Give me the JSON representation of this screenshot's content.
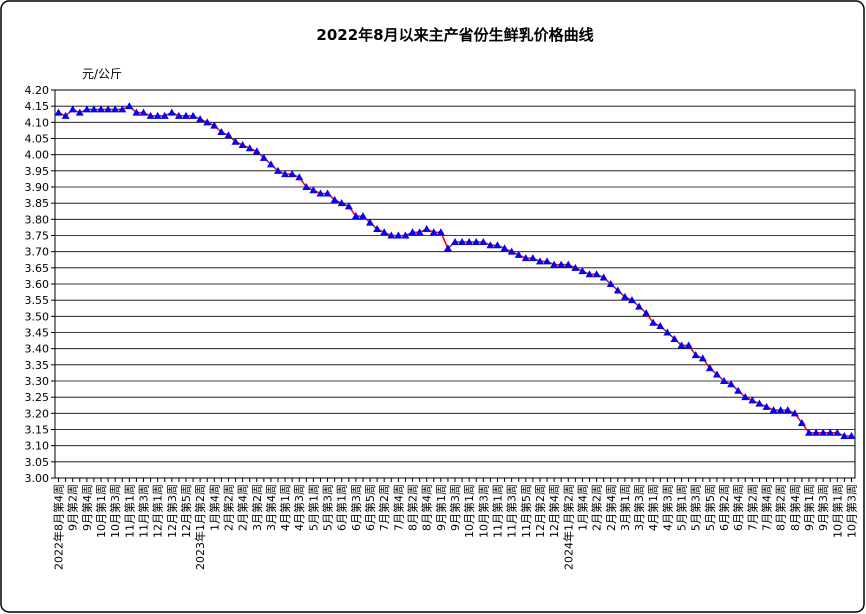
{
  "chart_data": {
    "type": "line",
    "title": "2022年8月以来主产省份生鲜乳价格曲线",
    "y_label": "元/公斤",
    "categories": [
      "2022年8月第4周",
      null,
      "9月第2周",
      null,
      "9月第4周",
      null,
      "10月第1周",
      null,
      "10月第3周",
      null,
      "11月第1周",
      null,
      "11月第3周",
      null,
      "12月第1周",
      null,
      "12月第3周",
      null,
      "12月第5周",
      null,
      "2023年1月第2周",
      null,
      "1月第4周",
      null,
      "2月第2周",
      null,
      "2月第4周",
      null,
      "3月第2周",
      null,
      "3月第4周",
      null,
      "4月第1周",
      null,
      "4月第3周",
      null,
      "5月第1周",
      null,
      "5月第3周",
      null,
      "6月第1周",
      null,
      "6月第3周",
      null,
      "6月第5周",
      null,
      "7月第2周",
      null,
      "7月第4周",
      null,
      "8月第2周",
      null,
      "8月第4周",
      null,
      "9月第1周",
      null,
      "9月第3周",
      null,
      "10月第1周",
      null,
      "10月第3周",
      null,
      "11月第1周",
      null,
      "11月第3周",
      null,
      "11月第5周",
      null,
      "12月第2周",
      null,
      "12月第4周",
      null,
      "2024年1月第2周",
      null,
      "1月第4周",
      null,
      "2月第2周",
      null,
      "2月第4周",
      null,
      "3月第1周",
      null,
      "3月第3周",
      null,
      "4月第1周",
      null,
      "4月第3周",
      null,
      "5月第1周",
      null,
      "5月第3周",
      null,
      "5月第5周",
      null,
      "6月第2周",
      null,
      "6月第4周",
      null,
      "7月第2周",
      null,
      "7月第4周",
      null,
      "8月第2周",
      null,
      "8月第4周",
      null,
      "9月第1周",
      null,
      "9月第3周",
      null,
      "10月第1周",
      null,
      "10月第3周"
    ],
    "series": [
      {
        "color": "#ff0000",
        "marker_color": "#0000ff",
        "values": [
          4.13,
          4.12,
          4.14,
          4.13,
          4.14,
          4.14,
          4.14,
          4.14,
          4.14,
          4.14,
          4.15,
          4.13,
          4.13,
          4.12,
          4.12,
          4.12,
          4.13,
          4.12,
          4.12,
          4.12,
          4.11,
          4.1,
          4.09,
          4.07,
          4.06,
          4.04,
          4.03,
          4.02,
          4.01,
          3.99,
          3.97,
          3.95,
          3.94,
          3.94,
          3.93,
          3.9,
          3.89,
          3.88,
          3.88,
          3.86,
          3.85,
          3.84,
          3.81,
          3.81,
          3.79,
          3.77,
          3.76,
          3.75,
          3.75,
          3.75,
          3.76,
          3.76,
          3.77,
          3.76,
          3.76,
          3.71,
          3.73,
          3.73,
          3.73,
          3.73,
          3.73,
          3.72,
          3.72,
          3.71,
          3.7,
          3.69,
          3.68,
          3.68,
          3.67,
          3.67,
          3.66,
          3.66,
          3.66,
          3.65,
          3.64,
          3.63,
          3.63,
          3.62,
          3.6,
          3.58,
          3.56,
          3.55,
          3.53,
          3.51,
          3.48,
          3.47,
          3.45,
          3.43,
          3.41,
          3.41,
          3.38,
          3.37,
          3.34,
          3.32,
          3.3,
          3.29,
          3.27,
          3.25,
          3.24,
          3.23,
          3.22,
          3.21,
          3.21,
          3.21,
          3.2,
          3.17,
          3.14,
          3.14,
          3.14,
          3.14,
          3.14,
          3.13,
          3.13
        ]
      }
    ],
    "ylim": [
      3,
      4.2
    ],
    "yticks": [
      {
        "value": 3,
        "label": "3.00"
      },
      3.05,
      {
        "value": 3.1,
        "label": "3.10"
      },
      3.15,
      {
        "value": 3.2,
        "label": "3.20"
      },
      3.25,
      {
        "value": 3.3,
        "label": "3.30"
      },
      3.35,
      {
        "value": 3.4,
        "label": "3.40"
      },
      3.45,
      {
        "value": 3.5,
        "label": "3.50"
      },
      3.55,
      {
        "value": 3.6,
        "label": "3.60"
      },
      3.65,
      {
        "value": 3.7,
        "label": "3.70"
      },
      3.75,
      {
        "value": 3.8,
        "label": "3.80"
      },
      3.85,
      {
        "value": 3.9,
        "label": "3.90"
      },
      3.95,
      {
        "value": 4,
        "label": "4.00"
      },
      4.05,
      {
        "value": 4.1,
        "label": "4.10"
      },
      4.15,
      {
        "value": 4.2,
        "label": "4.20"
      }
    ],
    "grid": true
  }
}
